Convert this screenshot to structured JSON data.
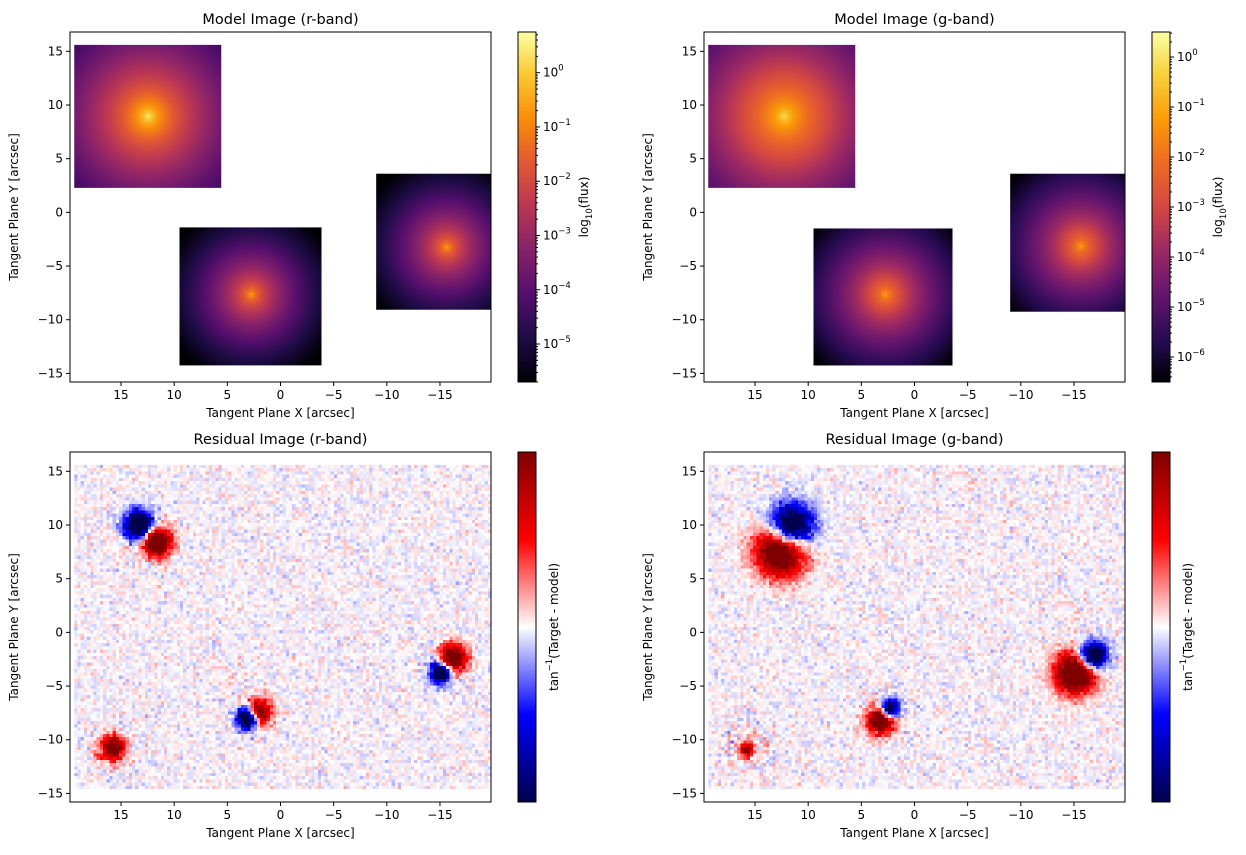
{
  "chart_data": [
    {
      "type": "heatmap",
      "title": "Model Image (r-band)",
      "xlabel": "Tangent Plane X [arcsec]",
      "ylabel": "Tangent Plane Y [arcsec]",
      "xlim": [
        19.8,
        -19.8
      ],
      "ylim": [
        -15.8,
        16.8
      ],
      "xticks": [
        15,
        10,
        5,
        0,
        -5,
        -10,
        -15
      ],
      "xticklabels": [
        "15",
        "10",
        "5",
        "0",
        "−5",
        "−10",
        "−15"
      ],
      "yticks": [
        15,
        10,
        5,
        0,
        -5,
        -10,
        -15
      ],
      "yticklabels": [
        "15",
        "10",
        "5",
        "0",
        "−5",
        "−10",
        "−15"
      ],
      "colormap": "inferno",
      "colorbar": {
        "label": "log10(flux)",
        "label_base": "log",
        "label_sub": "10",
        "label_rest": "(flux)",
        "scale": "log",
        "min_exp": -5.7,
        "max_exp": 0.75,
        "ticks_exp": [
          -5,
          -4,
          -3,
          -2,
          -1,
          0
        ]
      },
      "panel_type": "model",
      "sources": [
        {
          "x0": 12.5,
          "y0": 9.0,
          "xmin": 5.6,
          "xmax": 19.4,
          "ymin": 2.3,
          "ymax": 15.6,
          "peak": 0.75,
          "scale": 4.0
        },
        {
          "x0": 2.8,
          "y0": -7.6,
          "xmin": -3.9,
          "xmax": 9.5,
          "ymin": -14.3,
          "ymax": -1.4,
          "peak": -0.3,
          "scale": 4.5
        },
        {
          "x0": -15.6,
          "y0": -3.2,
          "xmin": -19.8,
          "xmax": -9.0,
          "ymin": -9.1,
          "ymax": 3.6,
          "peak": -0.3,
          "scale": 4.5
        }
      ],
      "grid": false
    },
    {
      "type": "heatmap",
      "title": "Model Image (g-band)",
      "xlabel": "Tangent Plane X [arcsec]",
      "ylabel": "Tangent Plane Y [arcsec]",
      "xlim": [
        19.8,
        -19.8
      ],
      "ylim": [
        -15.8,
        16.8
      ],
      "xticks": [
        15,
        10,
        5,
        0,
        -5,
        -10,
        -15
      ],
      "xticklabels": [
        "15",
        "10",
        "5",
        "0",
        "−5",
        "−10",
        "−15"
      ],
      "yticks": [
        15,
        10,
        5,
        0,
        -5,
        -10,
        -15
      ],
      "yticklabels": [
        "15",
        "10",
        "5",
        "0",
        "−5",
        "−10",
        "−15"
      ],
      "colormap": "plasma",
      "colorbar": {
        "label": "log10(flux)",
        "label_base": "log",
        "label_sub": "10",
        "label_rest": "(flux)",
        "scale": "log",
        "min_exp": -6.5,
        "max_exp": 0.5,
        "ticks_exp": [
          -6,
          -5,
          -4,
          -3,
          -2,
          -1,
          0
        ]
      },
      "panel_type": "model",
      "sources": [
        {
          "x0": 12.3,
          "y0": 9.0,
          "xmin": 5.6,
          "xmax": 19.4,
          "ymin": 2.3,
          "ymax": 15.6,
          "peak": 0.2,
          "scale": 4.0
        },
        {
          "x0": 2.8,
          "y0": -7.6,
          "xmin": -3.6,
          "xmax": 9.5,
          "ymin": -14.3,
          "ymax": -1.5,
          "peak": -0.9,
          "scale": 4.5
        },
        {
          "x0": -15.6,
          "y0": -3.1,
          "xmin": -19.8,
          "xmax": -9.0,
          "ymin": -9.3,
          "ymax": 3.6,
          "peak": -0.9,
          "scale": 4.5
        }
      ],
      "grid": false
    },
    {
      "type": "heatmap",
      "title": "Residual Image (r-band)",
      "xlabel": "Tangent Plane X [arcsec]",
      "ylabel": "Tangent Plane Y [arcsec]",
      "xlim": [
        19.8,
        -19.8
      ],
      "ylim": [
        -15.8,
        16.8
      ],
      "xticks": [
        15,
        10,
        5,
        0,
        -5,
        -10,
        -15
      ],
      "xticklabels": [
        "15",
        "10",
        "5",
        "0",
        "−5",
        "−10",
        "−15"
      ],
      "yticks": [
        15,
        10,
        5,
        0,
        -5,
        -10,
        -15
      ],
      "yticklabels": [
        "15",
        "10",
        "5",
        "0",
        "−5",
        "−10",
        "−15"
      ],
      "colormap": "seismic",
      "colorbar": {
        "label": "tan-1(Target - model)",
        "label_base": "tan",
        "label_sup": "−1",
        "label_rest": "(Target - model)"
      },
      "panel_type": "residual",
      "data_extent": {
        "xmin": -19.8,
        "xmax": 19.4,
        "ymin": -14.6,
        "ymax": 15.6
      },
      "features": [
        {
          "x": 12.5,
          "y": 9.0,
          "lobes": [
            [
              0.8,
              1.0,
              0.9,
              -1
            ],
            [
              -0.9,
              -0.6,
              0.9,
              1
            ]
          ]
        },
        {
          "x": 2.6,
          "y": -7.8,
          "lobes": [
            [
              0.5,
              -0.2,
              0.7,
              -1
            ],
            [
              -0.6,
              0.4,
              0.8,
              0.8
            ]
          ]
        },
        {
          "x": -15.6,
          "y": -3.2,
          "lobes": [
            [
              0.5,
              -0.5,
              0.7,
              -1
            ],
            [
              -0.6,
              0.7,
              0.9,
              0.9
            ]
          ]
        },
        {
          "x": 15.8,
          "y": -10.8,
          "lobes": [
            [
              0,
              0,
              0.8,
              0.8
            ]
          ]
        }
      ],
      "grid": false
    },
    {
      "type": "heatmap",
      "title": "Residual Image (g-band)",
      "xlabel": "Tangent Plane X [arcsec]",
      "ylabel": "Tangent Plane Y [arcsec]",
      "xlim": [
        19.8,
        -19.8
      ],
      "ylim": [
        -15.8,
        16.8
      ],
      "xticks": [
        15,
        10,
        5,
        0,
        -5,
        -10,
        -15
      ],
      "xticklabels": [
        "15",
        "10",
        "5",
        "0",
        "−5",
        "−10",
        "−15"
      ],
      "yticks": [
        15,
        10,
        5,
        0,
        -5,
        -10,
        -15
      ],
      "yticklabels": [
        "15",
        "10",
        "5",
        "0",
        "−5",
        "−10",
        "−15"
      ],
      "colormap": "seismic",
      "colorbar": {
        "label": "tan-1(Target - model)",
        "label_base": "tan",
        "label_sup": "−1",
        "label_rest": "(Target - model)"
      },
      "panel_type": "residual",
      "data_extent": {
        "xmin": -19.8,
        "xmax": 19.4,
        "ymin": -14.6,
        "ymax": 15.6
      },
      "features": [
        {
          "x": 12.0,
          "y": 8.8,
          "lobes": [
            [
              -0.4,
              1.0,
              1.4,
              -1
            ],
            [
              0.6,
              -1.2,
              1.6,
              1
            ]
          ]
        },
        {
          "x": 2.8,
          "y": -7.6,
          "lobes": [
            [
              -0.5,
              0.5,
              0.6,
              -1
            ],
            [
              0.4,
              -0.6,
              0.9,
              0.9
            ]
          ]
        },
        {
          "x": -15.6,
          "y": -3.0,
          "lobes": [
            [
              -1.2,
              0.8,
              0.9,
              -1
            ],
            [
              0.5,
              -0.8,
              1.3,
              1
            ]
          ]
        },
        {
          "x": 15.8,
          "y": -11.0,
          "lobes": [
            [
              0,
              0,
              0.5,
              0.6
            ]
          ]
        }
      ],
      "grid": false
    }
  ]
}
